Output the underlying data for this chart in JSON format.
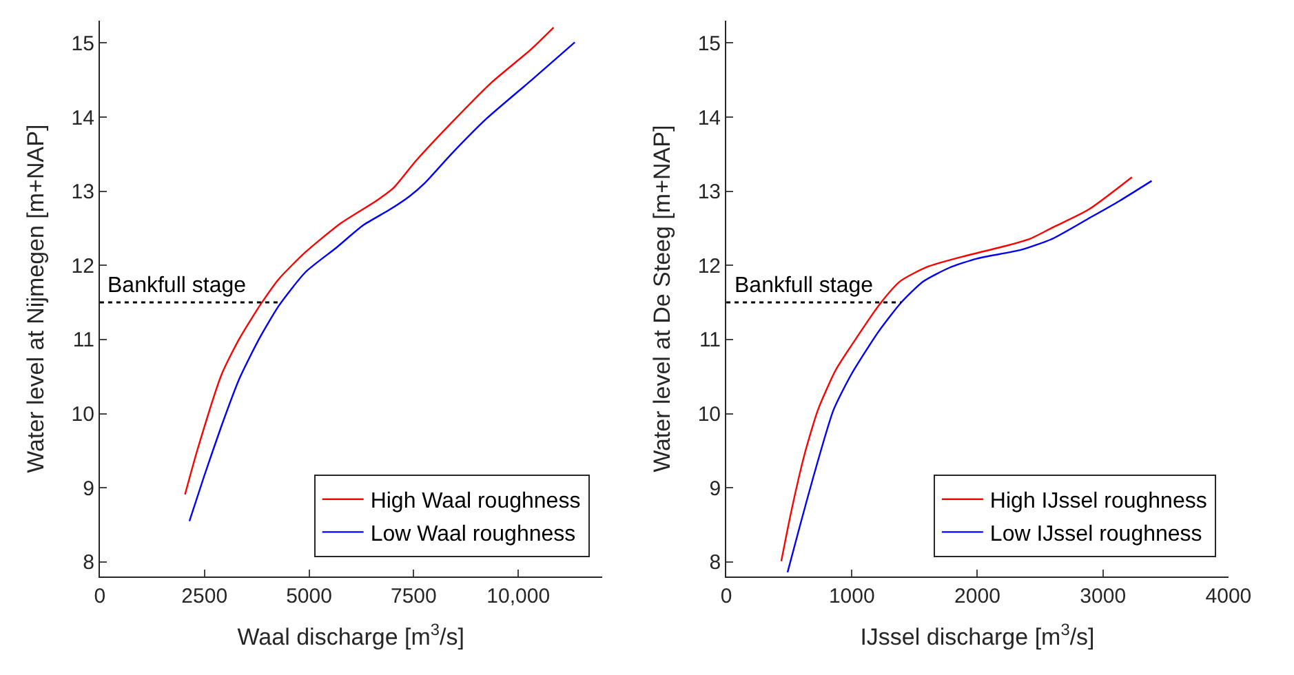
{
  "chart_data": [
    {
      "type": "line",
      "xlabel": "Waal discharge [m$^{3}$/s]",
      "ylabel": "Water level at Nijmegen [m+NAP]",
      "xlim": [
        0,
        12000
      ],
      "xticks": [
        0,
        2500,
        5000,
        7500,
        {
          "value": 10000,
          "label": "10,000"
        }
      ],
      "ylim": [
        7.8,
        15.3
      ],
      "yticks": [
        8,
        9,
        10,
        11,
        12,
        13,
        14,
        15
      ],
      "legend": "bottom right",
      "line_style": "solid",
      "marker": "none",
      "ref_lines": [
        {
          "axis": "y",
          "value": 11.5,
          "label": "Bankfull stage",
          "color": "#000000",
          "line_style": "dotted"
        }
      ],
      "series": [
        {
          "name": "High Waal roughness",
          "color": "#ff0000",
          "x": [
            2036,
            2331,
            2911,
            3333,
            3861,
            4283,
            4916,
            5760,
            6603,
            7025,
            7553,
            8397,
            9346,
            10295,
            10844
          ],
          "values": [
            8.91,
            9.51,
            10.53,
            11.01,
            11.49,
            11.82,
            12.18,
            12.57,
            12.87,
            13.05,
            13.41,
            13.92,
            14.46,
            14.91,
            15.21
          ]
        },
        {
          "name": "Low Waal roughness",
          "color": "#0000ff",
          "x": [
            2141,
            2489,
            2911,
            3333,
            3808,
            4283,
            4916,
            5654,
            6287,
            6920,
            7395,
            7764,
            8397,
            9241,
            10295,
            11350
          ],
          "values": [
            8.55,
            9.15,
            9.84,
            10.47,
            11.01,
            11.46,
            11.91,
            12.24,
            12.54,
            12.75,
            12.93,
            13.11,
            13.5,
            13.98,
            14.49,
            15.01
          ]
        }
      ]
    },
    {
      "type": "line",
      "xlabel": "IJssel discharge [m$^{3}$/s]",
      "ylabel": "Water level at De Steeg [m+NAP]",
      "xlim": [
        0,
        4000
      ],
      "xticks": [
        0,
        1000,
        2000,
        3000,
        4000
      ],
      "ylim": [
        7.8,
        15.3
      ],
      "yticks": [
        8,
        9,
        10,
        11,
        12,
        13,
        14,
        15
      ],
      "legend": "bottom right",
      "line_style": "solid",
      "marker": "none",
      "ref_lines": [
        {
          "axis": "y",
          "value": 11.5,
          "label": "Bankfull stage",
          "color": "#000000",
          "line_style": "dotted"
        }
      ],
      "series": [
        {
          "name": "High IJssel roughness",
          "color": "#ff0000",
          "x": [
            438,
            516,
            623,
            730,
            872,
            1032,
            1228,
            1388,
            1601,
            1886,
            2242,
            2420,
            2598,
            2883,
            3231
          ],
          "values": [
            8.01,
            8.67,
            9.45,
            10.05,
            10.59,
            11.01,
            11.49,
            11.79,
            11.98,
            12.12,
            12.27,
            12.36,
            12.51,
            12.75,
            13.19
          ]
        },
        {
          "name": "Low IJssel roughness",
          "color": "#0000ff",
          "x": [
            488,
            587,
            694,
            854,
            996,
            1210,
            1388,
            1566,
            1779,
            1993,
            2349,
            2598,
            2883,
            3132,
            3388
          ],
          "values": [
            7.86,
            8.49,
            9.15,
            10.05,
            10.53,
            11.1,
            11.49,
            11.78,
            11.97,
            12.09,
            12.21,
            12.36,
            12.63,
            12.87,
            13.14
          ]
        }
      ]
    }
  ]
}
